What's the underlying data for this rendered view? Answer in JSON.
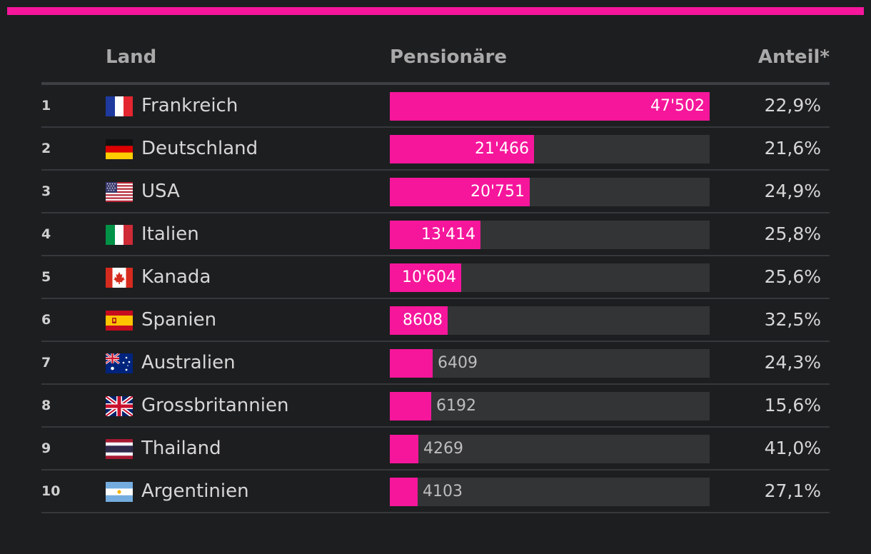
{
  "colors": {
    "background": "#1d1e20",
    "accent": "#f5169b",
    "track": "#333436"
  },
  "header": {
    "land": "Land",
    "pensionaere": "Pensionäre",
    "anteil": "Anteil*"
  },
  "chart_data": {
    "type": "bar",
    "orientation": "horizontal",
    "xlim": [
      0,
      47502
    ],
    "columns": [
      "Land",
      "Pensionäre",
      "Anteil*"
    ],
    "rows": [
      {
        "rank": "1",
        "flag": "france-flag-icon",
        "country": "Frankreich",
        "value": 47502,
        "value_label": "47'502",
        "share": "22,9%"
      },
      {
        "rank": "2",
        "flag": "germany-flag-icon",
        "country": "Deutschland",
        "value": 21466,
        "value_label": "21'466",
        "share": "21,6%"
      },
      {
        "rank": "3",
        "flag": "usa-flag-icon",
        "country": "USA",
        "value": 20751,
        "value_label": "20'751",
        "share": "24,9%"
      },
      {
        "rank": "4",
        "flag": "italy-flag-icon",
        "country": "Italien",
        "value": 13414,
        "value_label": "13'414",
        "share": "25,8%"
      },
      {
        "rank": "5",
        "flag": "canada-flag-icon",
        "country": "Kanada",
        "value": 10604,
        "value_label": "10'604",
        "share": "25,6%"
      },
      {
        "rank": "6",
        "flag": "spain-flag-icon",
        "country": "Spanien",
        "value": 8608,
        "value_label": "8608",
        "share": "32,5%"
      },
      {
        "rank": "7",
        "flag": "australia-flag-icon",
        "country": "Australien",
        "value": 6409,
        "value_label": "6409",
        "share": "24,3%"
      },
      {
        "rank": "8",
        "flag": "uk-flag-icon",
        "country": "Grossbritannien",
        "value": 6192,
        "value_label": "6192",
        "share": "15,6%"
      },
      {
        "rank": "9",
        "flag": "thailand-flag-icon",
        "country": "Thailand",
        "value": 4269,
        "value_label": "4269",
        "share": "41,0%"
      },
      {
        "rank": "10",
        "flag": "argentina-flag-icon",
        "country": "Argentinien",
        "value": 4103,
        "value_label": "4103",
        "share": "27,1%"
      }
    ]
  }
}
